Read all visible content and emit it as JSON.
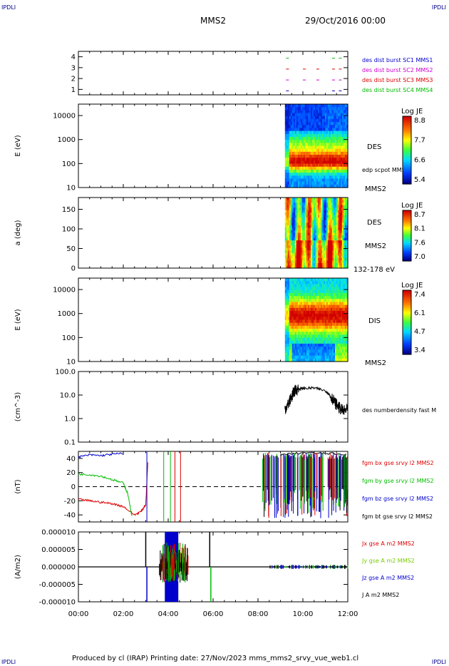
{
  "header": {
    "corner_left_top": "IPDLI",
    "corner_right_top": "IPDLI",
    "corner_left_bottom": "IPDLI",
    "corner_right_bottom": "IPDLI",
    "spacecraft": "MMS2",
    "date": "29/Oct/2016 00:00"
  },
  "footer": {
    "text": "Produced by cl (IRAP)   Printing date: 27/Nov/2023   mms_mms2_srvy_vue_web1.cl"
  },
  "time_axis": {
    "ticks": [
      "00:00",
      "02:00",
      "04:00",
      "06:00",
      "08:00",
      "10:00",
      "12:00"
    ],
    "range_hours": [
      0,
      12
    ]
  },
  "colors": {
    "mms1": "#0000cc",
    "mms2": "#cc00cc",
    "mms3": "#dd0000",
    "mms4": "#00bb00",
    "bt": "#000000"
  },
  "chart_data": [
    {
      "type": "scatter",
      "panel": "burst-availability",
      "y_ticks": [
        "4",
        "3",
        "2",
        "1"
      ],
      "ylim": [
        0.5,
        4.5
      ],
      "legend": [
        "des dist burst SC1 MMS1",
        "des dist burst SC2 MMS2",
        "des dist burst SC3 MMS3",
        "des dist burst SC4 MMS4"
      ],
      "series": [
        {
          "name": "des dist burst SC1 MMS1",
          "y": 1,
          "x_hours": [
            9.25,
            11.3,
            11.6
          ]
        },
        {
          "name": "des dist burst SC2 MMS2",
          "y": 2,
          "x_hours": [
            9.25,
            10.0,
            10.6,
            11.3,
            11.6
          ]
        },
        {
          "name": "des dist burst SC3 MMS3",
          "y": 3,
          "x_hours": [
            9.25,
            10.0,
            10.6,
            11.3,
            11.6
          ]
        },
        {
          "name": "des dist burst SC4 MMS4",
          "y": 4,
          "x_hours": [
            9.25,
            11.3,
            11.6
          ]
        }
      ]
    },
    {
      "type": "heatmap",
      "panel": "des-energy-spectrogram",
      "ylabel": "E (eV)",
      "y_scale": "log",
      "ylim": [
        10,
        30000
      ],
      "y_ticks": [
        "10000",
        "1000",
        "100",
        "10"
      ],
      "label": "DES",
      "sublabel": "edp scpot MMS2",
      "spacecraft_label": "MMS2",
      "colorbar": {
        "title": "Log JE",
        "ticks": [
          "8.8",
          "7.7",
          "6.6",
          "5.4"
        ],
        "range": [
          5.4,
          8.8
        ]
      },
      "data_interval_hours": [
        9.2,
        12.0
      ]
    },
    {
      "type": "heatmap",
      "panel": "des-pitch-angle",
      "ylabel": "a (deg)",
      "ylim": [
        0,
        180
      ],
      "y_ticks": [
        "150",
        "100",
        "50",
        "0"
      ],
      "label": "DES",
      "spacecraft_label": "MMS2",
      "energy_range_label": "132-178 eV",
      "colorbar": {
        "title": "Log JE",
        "ticks": [
          "8.7",
          "8.1",
          "7.6",
          "7.0"
        ],
        "range": [
          7.0,
          8.7
        ]
      },
      "data_interval_hours": [
        9.2,
        12.0
      ]
    },
    {
      "type": "heatmap",
      "panel": "dis-energy-spectrogram",
      "ylabel": "E (eV)",
      "y_scale": "log",
      "ylim": [
        10,
        30000
      ],
      "y_ticks": [
        "10000",
        "1000",
        "100",
        "10"
      ],
      "label": "DIS",
      "spacecraft_label": "MMS2",
      "colorbar": {
        "title": "Log JE",
        "ticks": [
          "7.4",
          "6.1",
          "4.7",
          "3.4"
        ],
        "range": [
          3.4,
          7.4
        ]
      },
      "data_interval_hours": [
        9.2,
        12.0
      ]
    },
    {
      "type": "line",
      "panel": "density",
      "ylabel": "(cm^-3)",
      "y_scale": "log",
      "ylim": [
        0.1,
        100
      ],
      "y_ticks": [
        "100.0",
        "10.0",
        "1.0",
        "0.1"
      ],
      "series": [
        {
          "name": "des numberdensity fast M",
          "x_hours": [
            9.2,
            9.35,
            9.5,
            9.6,
            9.75,
            10.0,
            10.5,
            11.0,
            11.2,
            11.4,
            11.6,
            11.8,
            12.0
          ],
          "values": [
            2.5,
            4.0,
            8.0,
            14.0,
            18.0,
            19.0,
            20.0,
            15.0,
            10.0,
            5.0,
            3.0,
            2.0,
            2.5
          ]
        }
      ]
    },
    {
      "type": "line",
      "panel": "magnetic-field",
      "ylabel": "(nT)",
      "ylim": [
        -50,
        50
      ],
      "y_ticks": [
        "40",
        "20",
        "0",
        "-20",
        "-40"
      ],
      "series": [
        {
          "name": "fgm bx gse srvy l2 MMS2",
          "x_hours": [
            0,
            0.5,
            1.0,
            1.5,
            2.0,
            2.5,
            2.8,
            3.0,
            3.1
          ],
          "values": [
            -18,
            -20,
            -22,
            -24,
            -28,
            -40,
            -35,
            -25,
            40
          ]
        },
        {
          "name": "fgm by gse srvy l2 MMS2",
          "x_hours": [
            0,
            0.5,
            1.0,
            1.5,
            2.0,
            2.2,
            2.4
          ],
          "values": [
            18,
            17,
            15,
            10,
            5,
            -10,
            -45
          ]
        },
        {
          "name": "fgm bz gse srvy l2 MMS2",
          "x_hours": [
            0,
            0.5,
            1.0,
            1.5,
            2.0
          ],
          "values": [
            42,
            45,
            44,
            46,
            47
          ]
        },
        {
          "name": "fgm bt gse srvy l2 MMS2",
          "x_hours": [
            9.0,
            10.0,
            11.0,
            12.0
          ],
          "values": [
            45,
            48,
            47,
            46
          ]
        }
      ]
    },
    {
      "type": "line",
      "panel": "current-density",
      "ylabel": "(A/m2)",
      "ylim": [
        -1e-05,
        1e-05
      ],
      "y_ticks": [
        "0.000010",
        "0.000005",
        "0.000000",
        "-0.000005",
        "-0.000010"
      ],
      "series": [
        {
          "name": "Jx gse A m2 MMS2",
          "x_hours": [
            0,
            12
          ],
          "values": [
            0,
            0
          ]
        },
        {
          "name": "Jy gse A m2 MMS2",
          "x_hours": [
            0,
            12
          ],
          "values": [
            0,
            0
          ]
        },
        {
          "name": "Jz gse A m2 MMS2",
          "x_hours": [
            0,
            12
          ],
          "values": [
            0,
            0
          ]
        },
        {
          "name": "J A m2 MMS2",
          "x_hours": [
            0,
            12
          ],
          "values": [
            0,
            0
          ]
        }
      ]
    }
  ]
}
